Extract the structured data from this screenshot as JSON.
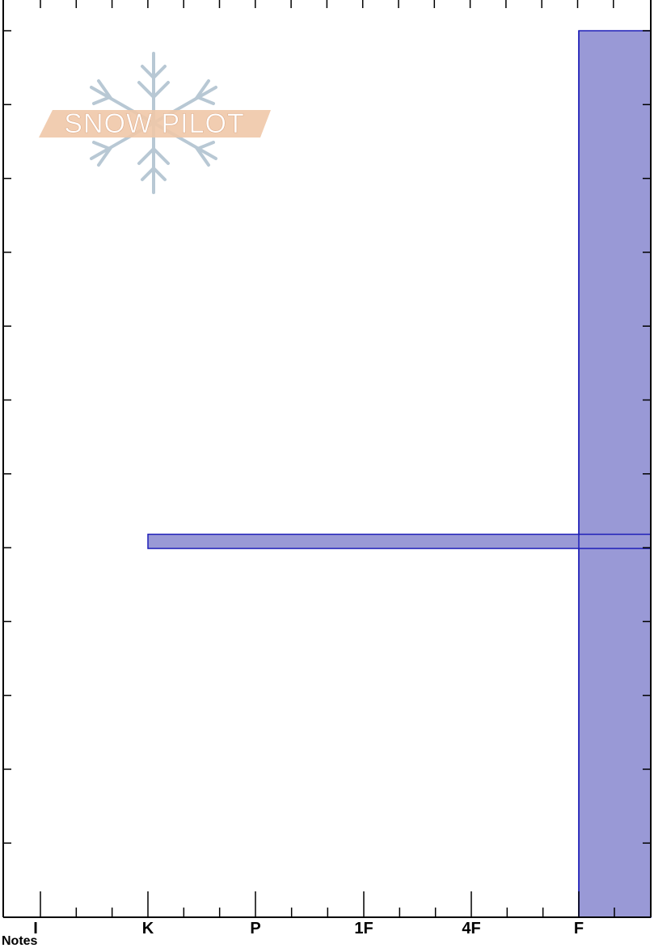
{
  "logo": {
    "text": "SNOW PILOT"
  },
  "notes_label": "Notes",
  "colors": {
    "layer_fill": "#9999d6",
    "layer_stroke": "#1f1fb8",
    "logo_banner": "#f0c8a8",
    "logo_flake": "#b8c8d4"
  },
  "chart_data": {
    "type": "bar",
    "title": "",
    "xlabel": "",
    "ylabel": "",
    "x_categories": [
      "I",
      "K",
      "P",
      "1F",
      "4F",
      "F"
    ],
    "x_axis_reversed": true,
    "left_ticks": 12,
    "right_ticks": 12,
    "layers": [
      {
        "hardness": "F",
        "top_fraction": 0.0,
        "bottom_fraction": 1.0
      },
      {
        "hardness": "K",
        "top_fraction": 0.568,
        "bottom_fraction": 0.584
      }
    ]
  }
}
